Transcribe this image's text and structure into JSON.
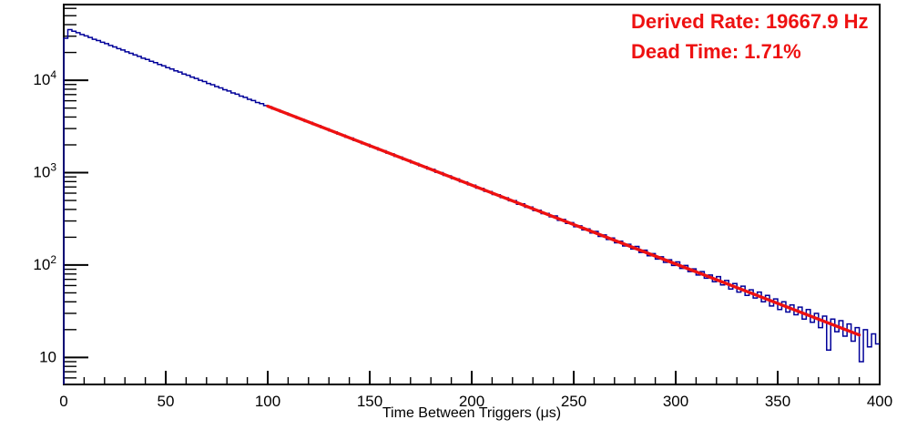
{
  "annotations": {
    "derived_rate": "Derived Rate: 19667.9 Hz",
    "dead_time": "Dead Time: 1.71%",
    "color": "#ee1111"
  },
  "chart_data": {
    "type": "histogram-step-line",
    "title": "",
    "xlabel": "Time Between Triggers (μs)",
    "ylabel": "",
    "x_scale": "linear",
    "y_scale": "log",
    "xlim": [
      0,
      400
    ],
    "ylim": [
      5.1,
      66000
    ],
    "grid": false,
    "x_major_ticks": [
      0,
      50,
      100,
      150,
      200,
      250,
      300,
      350,
      400
    ],
    "x_minor_step_us": 10,
    "y_major_ticks": [
      {
        "value": 10,
        "base": "10",
        "exp": ""
      },
      {
        "value": 100,
        "base": "10",
        "exp": "2"
      },
      {
        "value": 1000,
        "base": "10",
        "exp": "3"
      },
      {
        "value": 10000,
        "base": "10",
        "exp": "4"
      }
    ],
    "histogram_color": "#000099",
    "bin_width_us": 2,
    "bin_start_us": 0,
    "bins": [
      28500,
      35400,
      34000,
      32700,
      31300,
      30200,
      29100,
      27800,
      26900,
      25800,
      24900,
      23800,
      22950,
      22000,
      21250,
      20300,
      19600,
      18800,
      18150,
      17350,
      16800,
      16050,
      15500,
      14820,
      14330,
      13700,
      13250,
      12670,
      12250,
      11700,
      11330,
      10820,
      10470,
      10000,
      9680,
      9240,
      8950,
      8540,
      8270,
      7890,
      7650,
      7290,
      7070,
      6740,
      6530,
      6230,
      6040,
      5750,
      5580,
      5320,
      5180,
      4910,
      4780,
      4540,
      4410,
      4190,
      4080,
      3870,
      3770,
      3580,
      3500,
      3310,
      3230,
      3060,
      2980,
      2830,
      2760,
      2610,
      2550,
      2410,
      2370,
      2230,
      2180,
      2060,
      2020,
      1900,
      1865,
      1760,
      1725,
      1625,
      1600,
      1500,
      1475,
      1390,
      1365,
      1280,
      1260,
      1185,
      1165,
      1095,
      1085,
      1010,
      1000,
      935,
      925,
      862,
      855,
      798,
      790,
      738,
      732,
      680,
      676,
      628,
      624,
      580,
      577,
      537,
      534,
      496,
      498,
      455,
      460,
      422,
      425,
      389,
      392,
      360,
      362,
      333,
      340,
      305,
      312,
      282,
      288,
      260,
      266,
      240,
      246,
      222,
      231,
      204,
      212,
      189,
      196,
      174,
      181,
      161,
      168,
      149,
      159,
      137,
      145,
      126,
      133,
      116,
      123,
      107,
      114,
      99,
      108,
      92,
      99,
      85,
      91,
      78,
      85,
      72,
      78,
      66,
      75,
      61,
      68,
      55,
      63,
      51,
      59,
      47,
      54,
      44,
      51,
      40,
      47,
      36,
      43,
      33,
      40,
      31,
      37,
      29,
      35,
      26,
      33,
      24,
      30,
      21,
      28,
      12,
      26,
      19,
      25,
      17,
      23,
      15,
      21,
      9,
      20,
      13,
      18,
      14
    ],
    "fit": {
      "type": "exponential",
      "color": "#ee1111",
      "t_start_us": 100,
      "t_end_us": 390,
      "value_at_start": 5245,
      "value_at_end": 17.5,
      "derived_rate_hz": 19667.9,
      "dead_time_pct": 1.71
    }
  }
}
